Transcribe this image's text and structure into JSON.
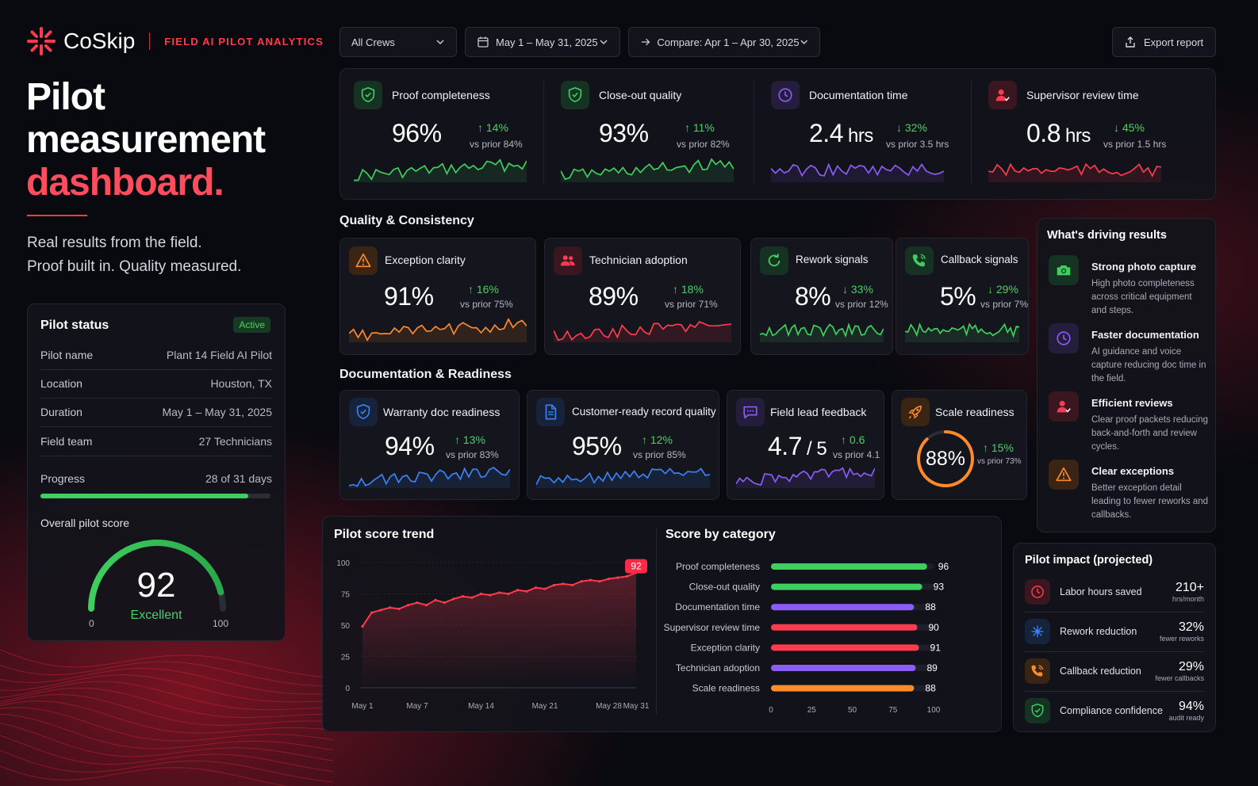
{
  "brand": {
    "name": "CoSkip",
    "tagline": "FIELD AI PILOT ANALYTICS"
  },
  "hero": {
    "line1": "Pilot",
    "line2": "measurement",
    "line3": "dashboard.",
    "sub1": "Real results from the field.",
    "sub2": "Proof built in. Quality measured."
  },
  "controls": {
    "crew": "All Crews",
    "date_range": "May 1 – May 31, 2025",
    "compare": "Compare: Apr 1 – Apr 30, 2025",
    "export": "Export report"
  },
  "colors": {
    "accent_red": "#ff3b4e",
    "green": "#3ecf5e",
    "purple": "#8b5cf6",
    "orange": "#ff8a2a",
    "blue": "#3b82f6",
    "background": "#090a10"
  },
  "top_kpis": [
    {
      "title": "Proof completeness",
      "value": "96%",
      "delta": "↑ 14%",
      "prior": "vs prior 84%",
      "icon": "shield-check-icon",
      "color": "#3ecf5e"
    },
    {
      "title": "Close-out quality",
      "value": "93%",
      "delta": "↑ 11%",
      "prior": "vs prior 82%",
      "icon": "shield-check-icon",
      "color": "#3ecf5e"
    },
    {
      "title": "Documentation time",
      "value": "2.4",
      "unit": "hrs",
      "delta": "↓ 32%",
      "prior": "vs prior 3.5 hrs",
      "icon": "clock-icon",
      "color": "#8b5cf6"
    },
    {
      "title": "Supervisor review time",
      "value": "0.8",
      "unit": "hrs",
      "delta": "↓ 45%",
      "prior": "vs prior 1.5 hrs",
      "icon": "user-check-icon",
      "color": "#ff3b4e"
    }
  ],
  "quality": {
    "heading": "Quality & Consistency",
    "cards": [
      {
        "title": "Exception clarity",
        "value": "91%",
        "delta": "↑ 16%",
        "prior": "vs prior 75%",
        "icon": "warning-icon",
        "color": "#ff8a2a"
      },
      {
        "title": "Technician adoption",
        "value": "89%",
        "delta": "↑ 18%",
        "prior": "vs prior 71%",
        "icon": "users-icon",
        "color": "#ff3b4e"
      },
      {
        "title": "Rework signals",
        "value": "8%",
        "delta": "↓ 33%",
        "prior": "vs prior 12%",
        "icon": "refresh-icon",
        "color": "#3ecf5e"
      },
      {
        "title": "Callback signals",
        "value": "5%",
        "delta": "↓ 29%",
        "prior": "vs prior 7%",
        "icon": "phone-icon",
        "color": "#3ecf5e"
      }
    ]
  },
  "documentation": {
    "heading": "Documentation & Readiness",
    "cards": [
      {
        "title": "Warranty doc readiness",
        "value": "94%",
        "delta": "↑ 13%",
        "prior": "vs prior 83%",
        "icon": "shield-check-icon",
        "color": "#3b82f6"
      },
      {
        "title": "Customer-ready record quality",
        "value": "95%",
        "delta": "↑ 12%",
        "prior": "vs prior 85%",
        "icon": "document-icon",
        "color": "#3b82f6"
      },
      {
        "title": "Field lead feedback",
        "value": "4.7",
        "unit": "/ 5",
        "delta": "↑ 0.6",
        "prior": "vs prior 4.1",
        "icon": "chat-icon",
        "color": "#8b5cf6"
      },
      {
        "title": "Scale readiness",
        "value": "88%",
        "gauge": 88,
        "delta": "↑ 15%",
        "prior": "vs prior 73%",
        "icon": "rocket-icon",
        "color": "#ff8a2a"
      }
    ]
  },
  "pilot_status": {
    "title": "Pilot status",
    "badge": "Active",
    "rows": [
      {
        "label": "Pilot name",
        "value": "Plant 14 Field AI Pilot"
      },
      {
        "label": "Location",
        "value": "Houston, TX"
      },
      {
        "label": "Duration",
        "value": "May 1 – May 31, 2025"
      },
      {
        "label": "Field team",
        "value": "27 Technicians"
      }
    ],
    "progress_label": "Progress",
    "progress_value": "28 of 31 days",
    "progress_fraction": 0.903,
    "score_label": "Overall pilot score",
    "score": 92,
    "score_text": "Excellent",
    "score_min": "0",
    "score_max": "100"
  },
  "drivers": {
    "title": "What's driving results",
    "items": [
      {
        "title": "Strong photo capture",
        "desc": "High photo completeness across critical equipment and steps.",
        "icon": "camera-icon",
        "color": "#3ecf5e"
      },
      {
        "title": "Faster documentation",
        "desc": "AI guidance and voice capture reducing doc time in the field.",
        "icon": "clock-icon",
        "color": "#8b5cf6"
      },
      {
        "title": "Efficient reviews",
        "desc": "Clear proof packets reducing back-and-forth and review cycles.",
        "icon": "user-check-icon",
        "color": "#ff3b4e"
      },
      {
        "title": "Clear exceptions",
        "desc": "Better exception detail leading to fewer reworks and callbacks.",
        "icon": "warning-icon",
        "color": "#ff8a2a"
      }
    ]
  },
  "impact": {
    "title": "Pilot impact (projected)",
    "items": [
      {
        "label": "Labor hours saved",
        "value": "210+",
        "sub": "hrs/month",
        "icon": "clock-icon",
        "color": "#ff3b4e"
      },
      {
        "label": "Rework reduction",
        "value": "32%",
        "sub": "fewer reworks",
        "icon": "sparkle-icon",
        "color": "#3b82f6"
      },
      {
        "label": "Callback reduction",
        "value": "29%",
        "sub": "fewer callbacks",
        "icon": "phone-icon",
        "color": "#ff8a2a"
      },
      {
        "label": "Compliance confidence",
        "value": "94%",
        "sub": "audit ready",
        "icon": "shield-check-icon",
        "color": "#3ecf5e"
      }
    ]
  },
  "chart_data": [
    {
      "type": "line",
      "title": "Pilot score trend",
      "x": [
        "May 1",
        "May 2",
        "May 3",
        "May 4",
        "May 5",
        "May 6",
        "May 7",
        "May 8",
        "May 9",
        "May 10",
        "May 11",
        "May 12",
        "May 13",
        "May 14",
        "May 15",
        "May 16",
        "May 17",
        "May 18",
        "May 19",
        "May 20",
        "May 21",
        "May 22",
        "May 23",
        "May 24",
        "May 25",
        "May 26",
        "May 27",
        "May 28",
        "May 29",
        "May 30",
        "May 31"
      ],
      "xticks": [
        "May 1",
        "May 7",
        "May 14",
        "May 21",
        "May 28",
        "May 31"
      ],
      "y": [
        49,
        60,
        62,
        64,
        63,
        66,
        68,
        66,
        70,
        68,
        71,
        73,
        72,
        75,
        74,
        76,
        75,
        78,
        77,
        80,
        79,
        82,
        83,
        82,
        85,
        86,
        85,
        87,
        88,
        89,
        92
      ],
      "ylim": [
        0,
        100
      ],
      "yticks": [
        "0",
        "25",
        "50",
        "75",
        "100"
      ],
      "end_label": "92",
      "color": "#ff3b4e"
    },
    {
      "type": "bar",
      "title": "Score by category",
      "categories": [
        "Proof completeness",
        "Close-out quality",
        "Documentation time",
        "Supervisor review time",
        "Exception clarity",
        "Technician adoption",
        "Scale readiness"
      ],
      "values": [
        96,
        93,
        88,
        90,
        91,
        89,
        88
      ],
      "colors": [
        "#3ecf5e",
        "#3ecf5e",
        "#8b5cf6",
        "#ff3b4e",
        "#ff3b4e",
        "#8b5cf6",
        "#ff8a2a"
      ],
      "xlim": [
        0,
        100
      ],
      "xticks": [
        "0",
        "25",
        "50",
        "75",
        "100"
      ]
    }
  ]
}
